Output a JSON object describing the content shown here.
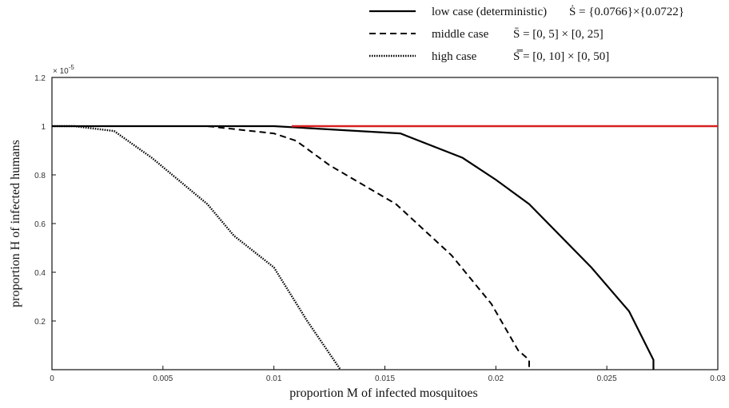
{
  "chart_data": {
    "type": "line",
    "x_label": "proportion M of infected mosquitoes",
    "y_label": "proportion H of infected humans",
    "y_multiplier": "× 10",
    "y_multiplier_exponent": "-5",
    "xlim": [
      0,
      0.03
    ],
    "ylim": [
      0,
      1.2
    ],
    "xticks": [
      0,
      0.005,
      0.01,
      0.015,
      0.02,
      0.025,
      0.03
    ],
    "yticks": [
      0.2,
      0.4,
      0.6,
      0.8,
      1,
      1.2
    ],
    "grid": false,
    "legend": "top-right",
    "series": [
      {
        "name": "low case (deterministic)",
        "set": "Ṡ = {0.0766}×{0.0722}",
        "color": "#000000",
        "dash": "solid",
        "x": [
          0,
          0.01,
          0.0157,
          0.0185,
          0.02,
          0.0215,
          0.0243,
          0.026,
          0.0271,
          0.0271
        ],
        "values": [
          1,
          1,
          0.97,
          0.87,
          0.78,
          0.68,
          0.42,
          0.24,
          0.04,
          0
        ]
      },
      {
        "name": "middle case",
        "set": "S̄ = [0, 5] × [0, 25]",
        "color": "#000000",
        "dash": "dashed",
        "x": [
          0,
          0.007,
          0.01,
          0.011,
          0.0125,
          0.0155,
          0.018,
          0.0198,
          0.021,
          0.0215,
          0.0215
        ],
        "values": [
          1,
          1,
          0.97,
          0.94,
          0.84,
          0.68,
          0.47,
          0.27,
          0.08,
          0.04,
          0
        ]
      },
      {
        "name": "high case",
        "set": "S̿ = [0, 10] × [0, 50]",
        "color": "#000000",
        "dash": "dotted",
        "x": [
          0,
          0.001,
          0.0028,
          0.0045,
          0.007,
          0.0082,
          0.01,
          0.0115,
          0.013
        ],
        "values": [
          1,
          1,
          0.98,
          0.87,
          0.68,
          0.55,
          0.42,
          0.2,
          0
        ]
      },
      {
        "color": "#d62020",
        "dash": "solid",
        "x": [
          0.0108,
          0.03
        ],
        "values": [
          1,
          1
        ]
      }
    ]
  }
}
